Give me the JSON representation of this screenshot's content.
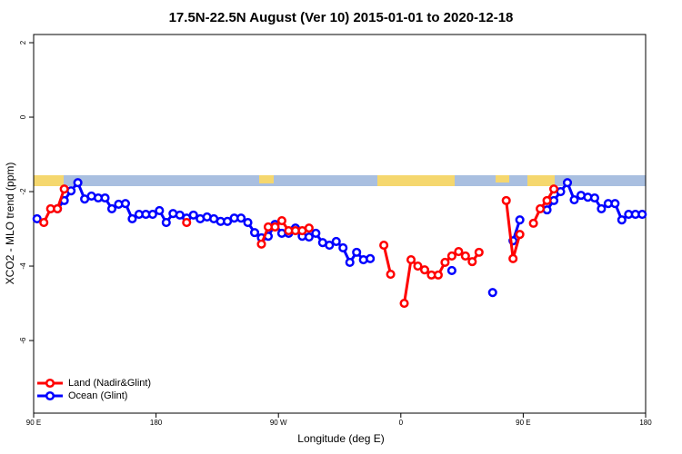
{
  "chart_data": {
    "type": "line",
    "title": "17.5N-22.5N August (Ver 10)   2015-01-01 to 2020-12-18",
    "xlabel": "Longitude (deg E)",
    "ylabel": "XCO2 - MLO trend (ppm)",
    "xlim": [
      90,
      540
    ],
    "ylim": [
      -7.95,
      2.22
    ],
    "xticks": [
      {
        "value": 90,
        "label": "90 E"
      },
      180,
      {
        "value": 270,
        "label": "90 W"
      },
      {
        "value": 360,
        "label": "0"
      },
      {
        "value": 450,
        "label": "90 E"
      },
      {
        "value": 540,
        "label": "180"
      }
    ],
    "yticks": [
      2,
      0,
      -2,
      -4,
      -6
    ],
    "legend": "bottom-left",
    "x": [
      92.5,
      97.5,
      102.5,
      107.5,
      112.5,
      117.5,
      122.5,
      127.5,
      132.5,
      137.5,
      142.5,
      147.5,
      152.5,
      157.5,
      162.5,
      167.5,
      172.5,
      177.5,
      182.5,
      187.5,
      192.5,
      197.5,
      202.5,
      207.5,
      212.5,
      217.5,
      222.5,
      227.5,
      232.5,
      237.5,
      242.5,
      247.5,
      252.5,
      257.5,
      262.5,
      267.5,
      272.5,
      277.5,
      282.5,
      287.5,
      292.5,
      297.5,
      302.5,
      307.5,
      312.5,
      317.5,
      322.5,
      327.5,
      332.5,
      337.5,
      342.5,
      347.5,
      352.5,
      357.5,
      362.5,
      367.5,
      372.5,
      377.5,
      382.5,
      387.5,
      392.5,
      397.5,
      402.5,
      407.5,
      412.5,
      417.5,
      422.5,
      427.5,
      432.5,
      437.5,
      442.5,
      447.5,
      452.5,
      457.5,
      462.5,
      467.5,
      472.5,
      477.5,
      482.5,
      487.5,
      492.5,
      497.5,
      502.5,
      507.5,
      512.5,
      517.5,
      522.5,
      527.5,
      532.5,
      537.5
    ],
    "series": [
      {
        "name": "Ocean (Glint)",
        "color": "#0000ff",
        "values": [
          -2.73,
          null,
          null,
          -2.46,
          -2.24,
          -1.98,
          -1.76,
          -2.2,
          -2.12,
          -2.17,
          -2.17,
          -2.46,
          -2.34,
          -2.32,
          -2.73,
          -2.61,
          -2.61,
          -2.61,
          -2.51,
          -2.83,
          -2.59,
          -2.63,
          -2.71,
          -2.63,
          -2.73,
          -2.68,
          -2.73,
          -2.8,
          -2.8,
          -2.71,
          -2.71,
          -2.83,
          -3.1,
          -3.24,
          -3.2,
          -2.88,
          -3.12,
          -3.12,
          -2.98,
          -3.2,
          -3.22,
          -3.12,
          -3.37,
          -3.44,
          -3.34,
          -3.51,
          -3.9,
          -3.63,
          -3.83,
          -3.8,
          null,
          null,
          null,
          null,
          null,
          null,
          null,
          null,
          null,
          null,
          null,
          -4.12,
          null,
          null,
          null,
          null,
          null,
          -4.71,
          null,
          null,
          -3.32,
          -2.76,
          null,
          null,
          null,
          -2.49,
          -2.24,
          -2.0,
          -1.76,
          -2.22,
          -2.1,
          -2.15,
          -2.17,
          -2.46,
          -2.32,
          -2.32,
          -2.76,
          -2.61,
          -2.61,
          -2.61
        ]
      },
      {
        "name": "Land (Nadir&Glint)",
        "color": "#ff0000",
        "values": [
          null,
          -2.83,
          -2.46,
          -2.46,
          -1.93,
          null,
          null,
          null,
          null,
          null,
          null,
          null,
          null,
          null,
          null,
          null,
          null,
          null,
          null,
          null,
          null,
          null,
          -2.83,
          null,
          null,
          null,
          null,
          null,
          null,
          null,
          null,
          null,
          null,
          -3.41,
          -2.95,
          -2.95,
          -2.78,
          -3.05,
          -3.05,
          -3.05,
          -2.98,
          null,
          null,
          null,
          null,
          null,
          null,
          null,
          null,
          null,
          null,
          -3.44,
          -4.22,
          null,
          -5.0,
          -3.83,
          -4.0,
          -4.1,
          -4.24,
          -4.24,
          -3.9,
          -3.73,
          -3.61,
          -3.73,
          -3.88,
          -3.63,
          null,
          null,
          null,
          -2.24,
          -3.8,
          -3.15,
          null,
          -2.85,
          -2.46,
          -2.24,
          -1.93,
          null,
          null,
          null,
          null,
          null,
          null,
          null,
          null,
          null,
          null,
          null,
          null,
          null
        ]
      }
    ]
  }
}
